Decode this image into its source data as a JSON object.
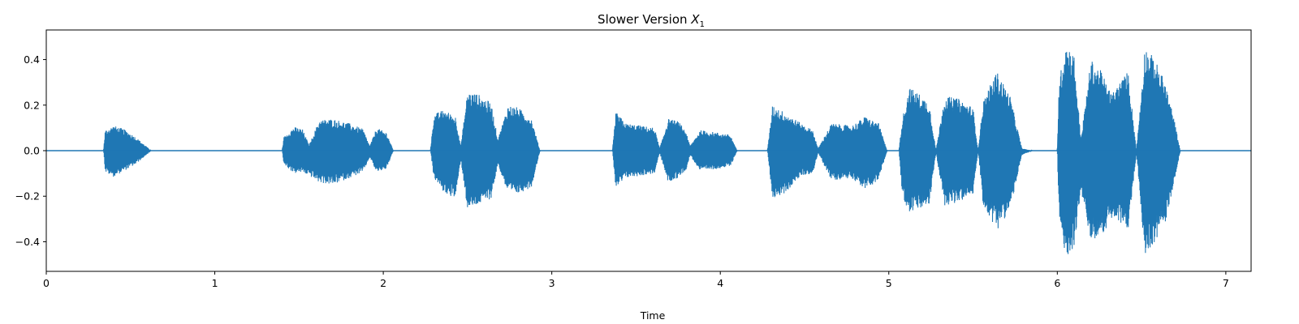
{
  "chart_data": {
    "type": "line",
    "title": "Slower Version ",
    "title_symbol": "X",
    "title_subscript": "1",
    "xlabel": "Time",
    "ylabel": "",
    "xlim": [
      0,
      7.15
    ],
    "ylim": [
      -0.53,
      0.53
    ],
    "xticks": [
      0,
      1,
      2,
      3,
      4,
      5,
      6,
      7
    ],
    "yticks": [
      -0.4,
      -0.2,
      0.0,
      0.2,
      0.4
    ],
    "ytick_labels": [
      "−0.4",
      "−0.2",
      "0.0",
      "0.2",
      "0.4"
    ],
    "xtick_labels": [
      "0",
      "1",
      "2",
      "3",
      "4",
      "5",
      "6",
      "7"
    ],
    "grid": false,
    "series": [
      {
        "color": "#1f77b4",
        "envelope": [
          [
            0.0,
            0.0,
            0.0
          ],
          [
            0.34,
            0.0,
            0.0
          ],
          [
            0.35,
            0.09,
            -0.095
          ],
          [
            0.4,
            0.11,
            -0.115
          ],
          [
            0.46,
            0.095,
            -0.09
          ],
          [
            0.53,
            0.06,
            -0.06
          ],
          [
            0.6,
            0.015,
            -0.015
          ],
          [
            0.62,
            0.0,
            0.0
          ],
          [
            1.4,
            0.0,
            0.0
          ],
          [
            1.41,
            0.06,
            -0.06
          ],
          [
            1.47,
            0.105,
            -0.1
          ],
          [
            1.52,
            0.095,
            -0.095
          ],
          [
            1.56,
            0.025,
            -0.11
          ],
          [
            1.62,
            0.135,
            -0.14
          ],
          [
            1.7,
            0.14,
            -0.15
          ],
          [
            1.8,
            0.12,
            -0.12
          ],
          [
            1.88,
            0.095,
            -0.095
          ],
          [
            1.92,
            0.02,
            -0.03
          ],
          [
            1.96,
            0.1,
            -0.095
          ],
          [
            2.02,
            0.08,
            -0.08
          ],
          [
            2.06,
            0.0,
            0.0
          ],
          [
            2.28,
            0.0,
            0.0
          ],
          [
            2.3,
            0.16,
            -0.12
          ],
          [
            2.36,
            0.18,
            -0.185
          ],
          [
            2.43,
            0.15,
            -0.21
          ],
          [
            2.46,
            0.02,
            -0.04
          ],
          [
            2.5,
            0.26,
            -0.26
          ],
          [
            2.56,
            0.25,
            -0.24
          ],
          [
            2.64,
            0.21,
            -0.21
          ],
          [
            2.68,
            0.05,
            -0.06
          ],
          [
            2.74,
            0.2,
            -0.19
          ],
          [
            2.8,
            0.19,
            -0.19
          ],
          [
            2.88,
            0.14,
            -0.16
          ],
          [
            2.93,
            0.0,
            0.0
          ],
          [
            3.36,
            0.0,
            0.0
          ],
          [
            3.38,
            0.17,
            -0.17
          ],
          [
            3.44,
            0.12,
            -0.12
          ],
          [
            3.53,
            0.11,
            -0.11
          ],
          [
            3.61,
            0.1,
            -0.1
          ],
          [
            3.64,
            0.01,
            -0.01
          ],
          [
            3.69,
            0.14,
            -0.14
          ],
          [
            3.75,
            0.13,
            -0.12
          ],
          [
            3.8,
            0.08,
            -0.08
          ],
          [
            3.82,
            0.02,
            -0.02
          ],
          [
            3.88,
            0.09,
            -0.09
          ],
          [
            3.98,
            0.08,
            -0.08
          ],
          [
            4.06,
            0.07,
            -0.07
          ],
          [
            4.1,
            0.0,
            0.0
          ],
          [
            4.28,
            0.0,
            0.0
          ],
          [
            4.31,
            0.2,
            -0.21
          ],
          [
            4.38,
            0.17,
            -0.19
          ],
          [
            4.48,
            0.12,
            -0.11
          ],
          [
            4.55,
            0.09,
            -0.1
          ],
          [
            4.58,
            0.01,
            -0.01
          ],
          [
            4.66,
            0.12,
            -0.13
          ],
          [
            4.78,
            0.11,
            -0.12
          ],
          [
            4.86,
            0.15,
            -0.17
          ],
          [
            4.94,
            0.12,
            -0.13
          ],
          [
            4.99,
            0.0,
            0.0
          ],
          [
            5.06,
            0.0,
            0.0
          ],
          [
            5.08,
            0.14,
            -0.2
          ],
          [
            5.12,
            0.28,
            -0.27
          ],
          [
            5.18,
            0.25,
            -0.26
          ],
          [
            5.24,
            0.21,
            -0.24
          ],
          [
            5.28,
            0.0,
            -0.01
          ],
          [
            5.33,
            0.24,
            -0.24
          ],
          [
            5.41,
            0.23,
            -0.23
          ],
          [
            5.5,
            0.19,
            -0.19
          ],
          [
            5.53,
            0.0,
            0.0
          ],
          [
            5.56,
            0.22,
            -0.24
          ],
          [
            5.64,
            0.35,
            -0.35
          ],
          [
            5.72,
            0.24,
            -0.26
          ],
          [
            5.79,
            0.01,
            -0.02
          ],
          [
            5.85,
            0.0,
            0.0
          ],
          [
            6.0,
            0.0,
            0.0
          ],
          [
            6.01,
            0.3,
            -0.3
          ],
          [
            6.05,
            0.48,
            -0.48
          ],
          [
            6.1,
            0.42,
            -0.42
          ],
          [
            6.14,
            0.05,
            -0.18
          ],
          [
            6.2,
            0.4,
            -0.4
          ],
          [
            6.26,
            0.35,
            -0.38
          ],
          [
            6.32,
            0.25,
            -0.3
          ],
          [
            6.37,
            0.3,
            -0.32
          ],
          [
            6.42,
            0.35,
            -0.35
          ],
          [
            6.47,
            0.0,
            -0.01
          ],
          [
            6.52,
            0.46,
            -0.46
          ],
          [
            6.58,
            0.4,
            -0.4
          ],
          [
            6.64,
            0.3,
            -0.32
          ],
          [
            6.69,
            0.15,
            -0.15
          ],
          [
            6.73,
            0.0,
            0.0
          ],
          [
            7.15,
            0.0,
            0.0
          ]
        ]
      }
    ]
  }
}
